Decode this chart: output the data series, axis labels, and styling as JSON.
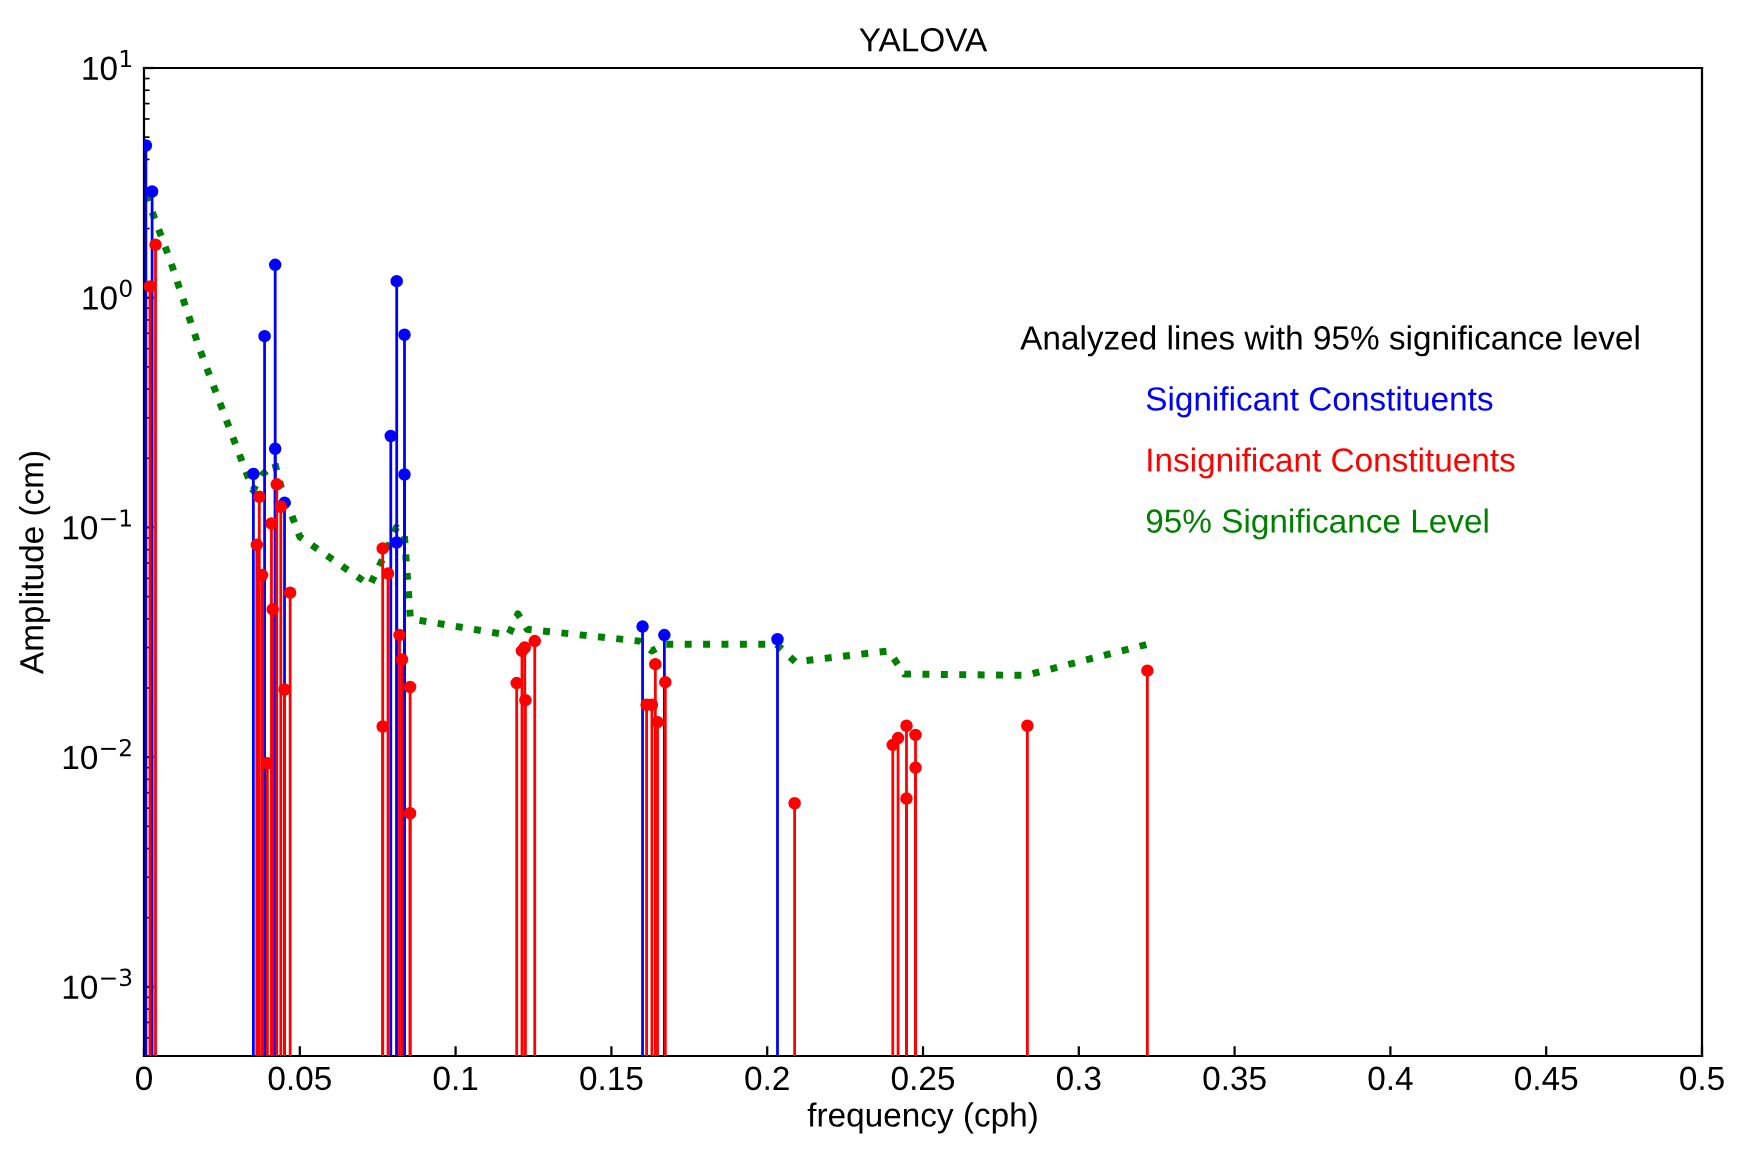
{
  "chart_data": {
    "type": "lollipop",
    "title": "YALOVA",
    "xlabel": "frequency (cph)",
    "ylabel": "Amplitude (cm)",
    "legend_title": "Analyzed lines with 95% significance level",
    "legend": "right",
    "log": "y",
    "grid": false,
    "marker": "circle",
    "xlim": [
      0,
      0.5
    ],
    "xticks": [
      0,
      0.05,
      0.1,
      0.15,
      0.2,
      0.25,
      0.3,
      0.35,
      0.4,
      0.45,
      0.5
    ],
    "ylim": [
      0.0005,
      10
    ],
    "yticks": [
      {
        "value": 0.001,
        "label": "10$^{−3}$"
      },
      {
        "value": 0.01,
        "label": "10$^{−2}$"
      },
      {
        "value": 0.1,
        "label": "10$^{−1}$"
      },
      {
        "value": 1,
        "label": "10$^{0}$"
      },
      {
        "value": 10,
        "label": "10$^{1}$"
      }
    ],
    "series": [
      {
        "name": "Significant Constituents",
        "color": "#0000ff",
        "x": [
          0.0006,
          0.0026,
          0.0351,
          0.0387,
          0.0421,
          0.0421,
          0.0451,
          0.0792,
          0.0811,
          0.0811,
          0.0836,
          0.0836,
          0.16,
          0.167,
          0.2033
        ],
        "values": [
          4.6,
          2.9,
          0.171,
          0.68,
          1.39,
          0.22,
          0.128,
          0.25,
          1.18,
          0.086,
          0.69,
          0.17,
          0.037,
          0.034,
          0.0326
        ]
      },
      {
        "name": "Insignificant Constituents",
        "color": "#ff0000",
        "x": [
          0.0019,
          0.0037,
          0.0362,
          0.037,
          0.0379,
          0.0396,
          0.0409,
          0.0413,
          0.0426,
          0.0439,
          0.0451,
          0.0469,
          0.0766,
          0.0766,
          0.0783,
          0.082,
          0.0828,
          0.0854,
          0.0854,
          0.1196,
          0.1213,
          0.1222,
          0.1224,
          0.1254,
          0.1613,
          0.163,
          0.1641,
          0.1648,
          0.1673,
          0.2088,
          0.2403,
          0.242,
          0.2447,
          0.2447,
          0.2476,
          0.2476,
          0.2835,
          0.322
        ],
        "values": [
          1.12,
          1.7,
          0.084,
          0.136,
          0.062,
          0.0094,
          0.104,
          0.044,
          0.154,
          0.123,
          0.0197,
          0.052,
          0.081,
          0.0136,
          0.063,
          0.034,
          0.0266,
          0.0202,
          0.0057,
          0.021,
          0.029,
          0.03,
          0.0177,
          0.032,
          0.0169,
          0.0169,
          0.0254,
          0.0142,
          0.0212,
          0.0063,
          0.0113,
          0.0121,
          0.0137,
          0.0066,
          0.0125,
          0.009,
          0.0137,
          0.0238
        ]
      },
      {
        "name": "95% Significance Level",
        "color": "#008000",
        "type": "line",
        "line_style": "dotted",
        "marker": "none",
        "x": [
          0.0006,
          0.0083,
          0.018,
          0.027,
          0.035,
          0.038,
          0.042,
          0.044,
          0.05,
          0.0725,
          0.078,
          0.081,
          0.0835,
          0.0855,
          0.117,
          0.12,
          0.123,
          0.159,
          0.163,
          0.167,
          0.203,
          0.209,
          0.239,
          0.244,
          0.283,
          0.322
        ],
        "values": [
          2.8,
          1.47,
          0.59,
          0.28,
          0.145,
          0.17,
          0.19,
          0.15,
          0.091,
          0.056,
          0.08,
          0.1,
          0.095,
          0.04,
          0.034,
          0.042,
          0.036,
          0.032,
          0.029,
          0.031,
          0.031,
          0.026,
          0.029,
          0.023,
          0.0227,
          0.031
        ]
      }
    ]
  }
}
